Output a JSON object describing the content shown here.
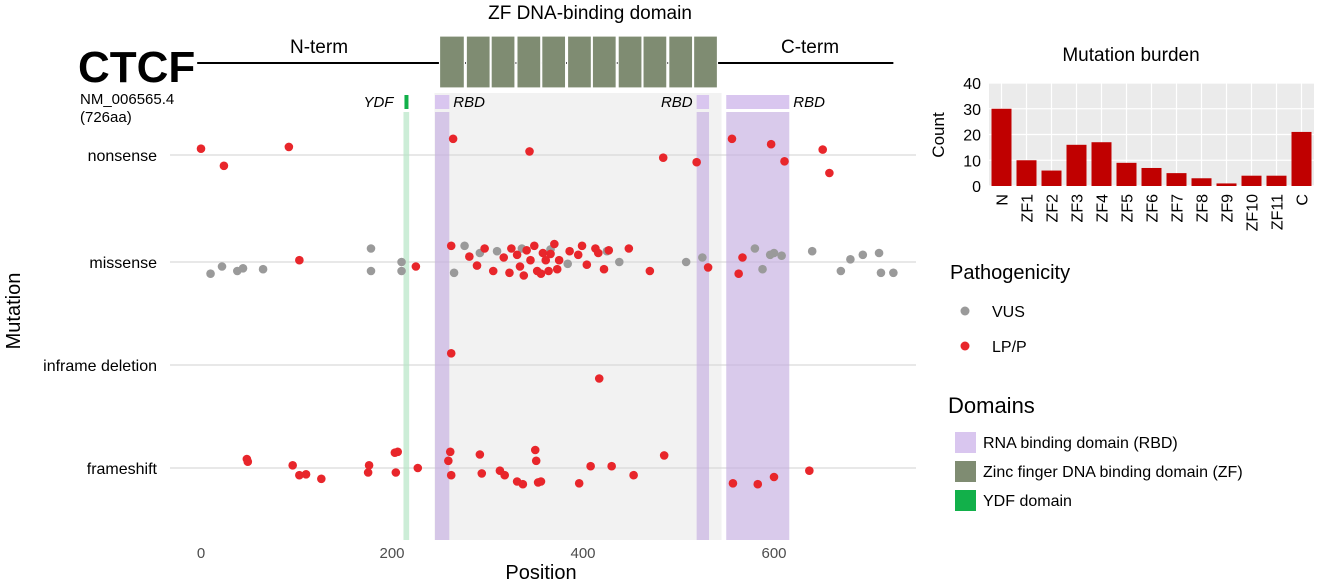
{
  "colors": {
    "vus": "#9a9a9a",
    "lpp": "#e8262b",
    "rbd": "#d9c6ef",
    "zf": "#7f8c72",
    "ydf": "#12b04a",
    "panel": "#f2f2f2",
    "bar": "#c00000"
  },
  "protein": {
    "gene": "CTCF",
    "transcript": "NM_006565.4",
    "length_label": "(726aa)",
    "nterm": "N-term",
    "cterm": "C-term",
    "zf_title": "ZF DNA-binding domain",
    "length": 726,
    "zf_fingers": [
      [
        255,
        280
      ],
      [
        283,
        307
      ],
      [
        309,
        333
      ],
      [
        336,
        360
      ],
      [
        362,
        386
      ],
      [
        389,
        413
      ],
      [
        415,
        439
      ],
      [
        442,
        466
      ],
      [
        468,
        492
      ],
      [
        495,
        519
      ],
      [
        521,
        545
      ]
    ],
    "domain_labels": {
      "ydf": "YDF",
      "rbd": "RBD"
    }
  },
  "chart_data": [
    {
      "type": "scatter",
      "xlabel": "Position",
      "ylabel": "Mutation",
      "xlim": [
        -10,
        745
      ],
      "xticks": [
        0,
        200,
        400,
        600
      ],
      "categories": [
        "nonsense",
        "missense",
        "inframe deletion",
        "frameshift"
      ],
      "shaded_regions": {
        "zf": [
          255,
          545
        ],
        "rbd": [
          [
            245,
            260
          ],
          [
            519,
            532
          ],
          [
            550,
            616
          ]
        ],
        "ydf": [
          [
            212,
            218
          ]
        ]
      },
      "series": [
        {
          "name": "VUS",
          "points": [
            [
              "missense",
              10,
              -0.13
            ],
            [
              "missense",
              22,
              -0.05
            ],
            [
              "missense",
              38,
              -0.1
            ],
            [
              "missense",
              44,
              -0.07
            ],
            [
              "missense",
              65,
              -0.08
            ],
            [
              "missense",
              178,
              0.15
            ],
            [
              "missense",
              178,
              -0.1
            ],
            [
              "missense",
              210,
              0
            ],
            [
              "missense",
              210,
              -0.1
            ],
            [
              "missense",
              265,
              -0.12
            ],
            [
              "missense",
              276,
              0.18
            ],
            [
              "missense",
              292,
              0.1
            ],
            [
              "missense",
              310,
              0.12
            ],
            [
              "missense",
              336,
              0.15
            ],
            [
              "missense",
              366,
              0.14
            ],
            [
              "missense",
              384,
              -0.02
            ],
            [
              "missense",
              425,
              0.12
            ],
            [
              "missense",
              438,
              0
            ],
            [
              "missense",
              508,
              0
            ],
            [
              "missense",
              525,
              0.05
            ],
            [
              "missense",
              580,
              0.15
            ],
            [
              "missense",
              588,
              -0.08
            ],
            [
              "missense",
              596,
              0.08
            ],
            [
              "missense",
              600,
              0.1
            ],
            [
              "missense",
              608,
              0.07
            ],
            [
              "missense",
              640,
              0.12
            ],
            [
              "missense",
              670,
              -0.1
            ],
            [
              "missense",
              680,
              0.03
            ],
            [
              "missense",
              693,
              0.08
            ],
            [
              "missense",
              710,
              0.1
            ],
            [
              "missense",
              712,
              -0.12
            ],
            [
              "missense",
              725,
              -0.12
            ]
          ]
        },
        {
          "name": "LP/P",
          "points": [
            [
              "nonsense",
              0,
              0.07
            ],
            [
              "nonsense",
              24,
              -0.12
            ],
            [
              "nonsense",
              92,
              0.09
            ],
            [
              "nonsense",
              264,
              0.18
            ],
            [
              "nonsense",
              344,
              0.04
            ],
            [
              "nonsense",
              484,
              -0.03
            ],
            [
              "nonsense",
              519,
              -0.08
            ],
            [
              "nonsense",
              556,
              0.18
            ],
            [
              "nonsense",
              597,
              0.12
            ],
            [
              "nonsense",
              611,
              -0.07
            ],
            [
              "nonsense",
              651,
              0.06
            ],
            [
              "nonsense",
              658,
              -0.2
            ],
            [
              "missense",
              103,
              0.02
            ],
            [
              "missense",
              225,
              -0.05
            ],
            [
              "missense",
              262,
              0.18
            ],
            [
              "missense",
              281,
              0.06
            ],
            [
              "missense",
              289,
              -0.04
            ],
            [
              "missense",
              297,
              0.15
            ],
            [
              "missense",
              306,
              -0.1
            ],
            [
              "missense",
              317,
              0.05
            ],
            [
              "missense",
              323,
              -0.12
            ],
            [
              "missense",
              325,
              0.15
            ],
            [
              "missense",
              331,
              0.08
            ],
            [
              "missense",
              334,
              -0.05
            ],
            [
              "missense",
              338,
              -0.15
            ],
            [
              "missense",
              341,
              0.13
            ],
            [
              "missense",
              345,
              0.02
            ],
            [
              "missense",
              349,
              0.18
            ],
            [
              "missense",
              352,
              -0.1
            ],
            [
              "missense",
              356,
              -0.13
            ],
            [
              "missense",
              358,
              0.1
            ],
            [
              "missense",
              361,
              0.02
            ],
            [
              "missense",
              364,
              -0.1
            ],
            [
              "missense",
              366,
              0.09
            ],
            [
              "missense",
              370,
              0.2
            ],
            [
              "missense",
              373,
              -0.08
            ],
            [
              "missense",
              375,
              0.02
            ],
            [
              "missense",
              386,
              0.12
            ],
            [
              "missense",
              395,
              0.08
            ],
            [
              "missense",
              399,
              0.18
            ],
            [
              "missense",
              404,
              -0.03
            ],
            [
              "missense",
              413,
              0.15
            ],
            [
              "missense",
              416,
              0.1
            ],
            [
              "missense",
              422,
              -0.08
            ],
            [
              "missense",
              427,
              0.13
            ],
            [
              "missense",
              448,
              0.15
            ],
            [
              "missense",
              470,
              -0.1
            ],
            [
              "missense",
              531,
              -0.06
            ],
            [
              "missense",
              567,
              0.05
            ],
            [
              "missense",
              563,
              -0.13
            ],
            [
              "inframe deletion",
              262,
              0.13
            ],
            [
              "inframe deletion",
              417,
              -0.15
            ],
            [
              "frameshift",
              48,
              0.1
            ],
            [
              "frameshift",
              49,
              0.07
            ],
            [
              "frameshift",
              96,
              0.03
            ],
            [
              "frameshift",
              103,
              -0.08
            ],
            [
              "frameshift",
              110,
              -0.07
            ],
            [
              "frameshift",
              126,
              -0.12
            ],
            [
              "frameshift",
              176,
              0.03
            ],
            [
              "frameshift",
              175,
              -0.05
            ],
            [
              "frameshift",
              203,
              0.17
            ],
            [
              "frameshift",
              206,
              0.18
            ],
            [
              "frameshift",
              204,
              -0.05
            ],
            [
              "frameshift",
              227,
              0
            ],
            [
              "frameshift",
              261,
              0.18
            ],
            [
              "frameshift",
              259,
              0.08
            ],
            [
              "frameshift",
              262,
              -0.08
            ],
            [
              "frameshift",
              292,
              0.15
            ],
            [
              "frameshift",
              294,
              -0.06
            ],
            [
              "frameshift",
              313,
              -0.03
            ],
            [
              "frameshift",
              318,
              -0.08
            ],
            [
              "frameshift",
              331,
              -0.15
            ],
            [
              "frameshift",
              337,
              -0.18
            ],
            [
              "frameshift",
              350,
              0.2
            ],
            [
              "frameshift",
              351,
              0.08
            ],
            [
              "frameshift",
              353,
              -0.16
            ],
            [
              "frameshift",
              356,
              -0.15
            ],
            [
              "frameshift",
              396,
              -0.17
            ],
            [
              "frameshift",
              408,
              0.02
            ],
            [
              "frameshift",
              430,
              0.02
            ],
            [
              "frameshift",
              453,
              -0.08
            ],
            [
              "frameshift",
              485,
              0.14
            ],
            [
              "frameshift",
              557,
              -0.17
            ],
            [
              "frameshift",
              583,
              -0.18
            ],
            [
              "frameshift",
              600,
              -0.1
            ],
            [
              "frameshift",
              637,
              -0.03
            ]
          ]
        }
      ]
    },
    {
      "type": "bar",
      "title": "Mutation burden",
      "xlabel": "",
      "ylabel": "Count",
      "ylim": [
        0,
        40
      ],
      "yticks": [
        0,
        10,
        20,
        30,
        40
      ],
      "categories": [
        "N",
        "ZF1",
        "ZF2",
        "ZF3",
        "ZF4",
        "ZF5",
        "ZF6",
        "ZF7",
        "ZF8",
        "ZF9",
        "ZF10",
        "ZF11",
        "C"
      ],
      "values": [
        30,
        10,
        6,
        16,
        17,
        9,
        7,
        5,
        3,
        1,
        4,
        4,
        21
      ]
    }
  ],
  "legends": {
    "pathogenicity": {
      "title": "Pathogenicity",
      "items": [
        {
          "label": "VUS",
          "color_key": "vus"
        },
        {
          "label": "LP/P",
          "color_key": "lpp"
        }
      ]
    },
    "domains": {
      "title": "Domains",
      "items": [
        {
          "label": "RNA binding domain (RBD)",
          "color_key": "rbd"
        },
        {
          "label": "Zinc finger DNA binding domain (ZF)",
          "color_key": "zf"
        },
        {
          "label": "YDF domain",
          "color_key": "ydf"
        }
      ]
    }
  }
}
